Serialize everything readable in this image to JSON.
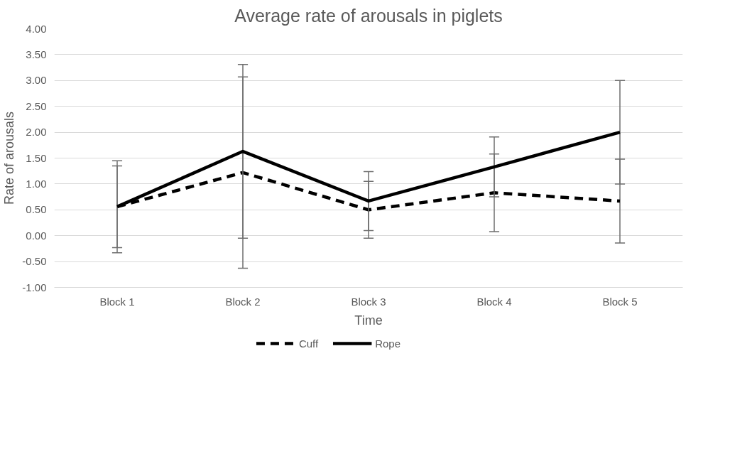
{
  "chart_data": {
    "type": "line",
    "title": "Average rate of arousals in piglets",
    "xlabel": "Time",
    "ylabel": "Rate of arousals",
    "categories": [
      "Block 1",
      "Block 2",
      "Block 3",
      "Block 4",
      "Block 5"
    ],
    "series": [
      {
        "name": "Cuff",
        "color": "#000000",
        "line_style": "dashed",
        "values": [
          0.56,
          1.22,
          0.5,
          0.83,
          0.67
        ],
        "errors": [
          0.79,
          1.85,
          0.55,
          0.75,
          0.81
        ]
      },
      {
        "name": "Rope",
        "color": "#000000",
        "line_style": "solid",
        "values": [
          0.56,
          1.63,
          0.67,
          1.33,
          2.0
        ],
        "errors": [
          0.89,
          1.68,
          0.57,
          0.58,
          1.0
        ]
      }
    ],
    "ylim": [
      -1,
      4
    ],
    "yticks": [
      {
        "value": -1,
        "label": "-1.00"
      },
      {
        "value": -0.5,
        "label": "-0.50"
      },
      {
        "value": 0,
        "label": "0.00"
      },
      {
        "value": 0.5,
        "label": "0.50"
      },
      {
        "value": 1,
        "label": "1.00"
      },
      {
        "value": 1.5,
        "label": "1.50"
      },
      {
        "value": 2,
        "label": "2.00"
      },
      {
        "value": 2.5,
        "label": "2.50"
      },
      {
        "value": 3,
        "label": "3.00"
      },
      {
        "value": 3.5,
        "label": "3.50"
      },
      {
        "value": 4,
        "label": "4.00"
      }
    ],
    "grid": "y",
    "legend": "bottom",
    "marker": "none"
  }
}
